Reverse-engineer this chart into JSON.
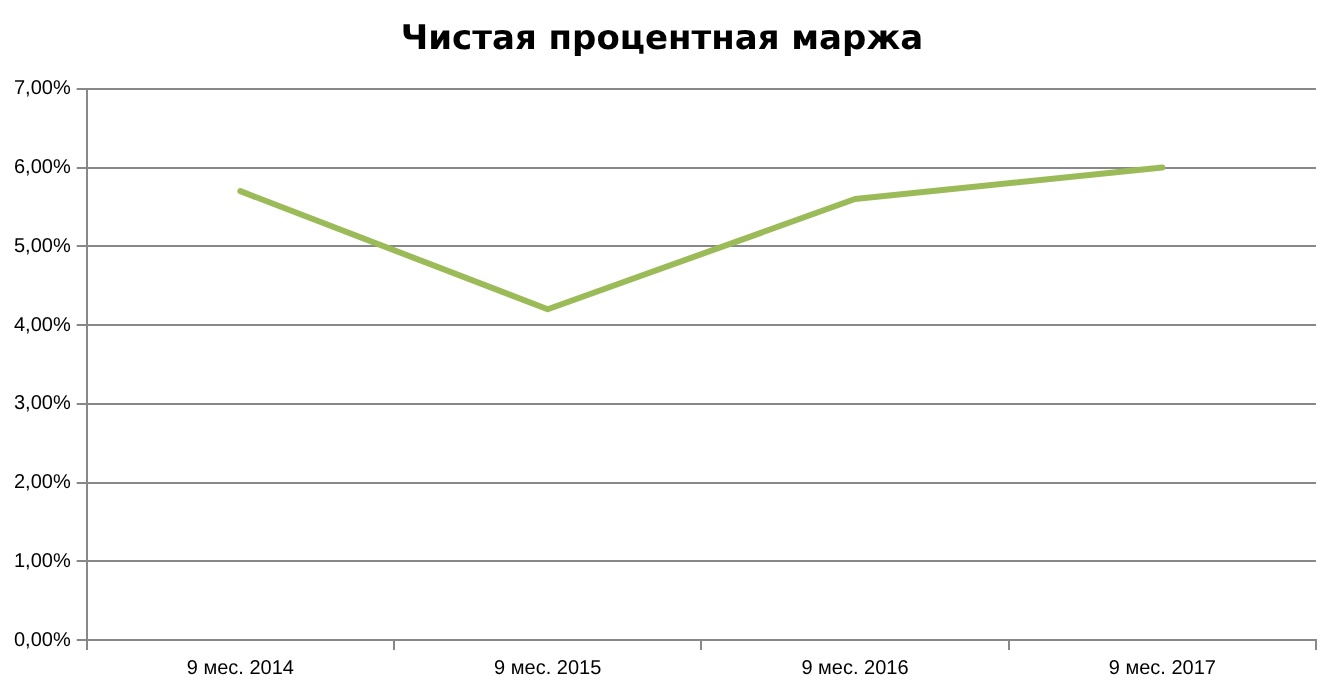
{
  "chart_data": {
    "type": "line",
    "title": "Чистая процентная маржа",
    "categories": [
      "9 мес. 2014",
      "9 мес. 2015",
      "9 мес. 2016",
      "9 мес. 2017"
    ],
    "series": [
      {
        "color": "#9bbb59",
        "values": [
          5.7,
          4.2,
          5.6,
          6.0
        ]
      }
    ],
    "ylim": [
      0,
      7
    ],
    "yticks": [
      {
        "value": 0,
        "label": "0,00%"
      },
      {
        "value": 1,
        "label": "1,00%"
      },
      {
        "value": 2,
        "label": "2,00%"
      },
      {
        "value": 3,
        "label": "3,00%"
      },
      {
        "value": 4,
        "label": "4,00%"
      },
      {
        "value": 5,
        "label": "5,00%"
      },
      {
        "value": 6,
        "label": "6,00%"
      },
      {
        "value": 7,
        "label": "7,00%"
      }
    ],
    "grid": "y",
    "legend": false,
    "marker": "none",
    "line_style": "solid"
  }
}
